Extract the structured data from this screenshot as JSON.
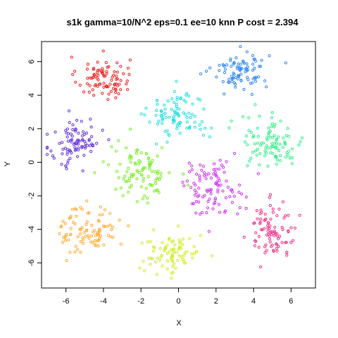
{
  "chart_data": {
    "type": "scatter",
    "title": "s1k gamma=10/N^2 eps=0.1 ee=10 knn P cost = 2.394",
    "xlabel": "X",
    "ylabel": "Y",
    "xlim": [
      -7.3,
      7.3
    ],
    "ylim": [
      -7.5,
      7.2
    ],
    "xticks": [
      -6,
      -4,
      -2,
      0,
      2,
      4,
      6
    ],
    "yticks": [
      -6,
      -4,
      -2,
      0,
      2,
      4,
      6
    ],
    "grid": false,
    "legend": "none",
    "marker": "open-circle",
    "series": [
      {
        "color": "#ee2222",
        "center": [
          -4.0,
          5.0
        ],
        "spread": [
          0.7,
          0.65
        ],
        "count": 90
      },
      {
        "color": "#3388ee",
        "center": [
          3.3,
          5.5
        ],
        "spread": [
          0.75,
          0.55
        ],
        "count": 90
      },
      {
        "color": "#22dddd",
        "center": [
          0.0,
          2.8
        ],
        "spread": [
          0.8,
          0.75
        ],
        "count": 95
      },
      {
        "color": "#6633dd",
        "center": [
          -5.5,
          1.1
        ],
        "spread": [
          0.7,
          0.75
        ],
        "count": 90
      },
      {
        "color": "#33ee88",
        "center": [
          5.0,
          1.2
        ],
        "spread": [
          0.85,
          0.8
        ],
        "count": 95
      },
      {
        "color": "#77ee22",
        "center": [
          -2.0,
          -0.6
        ],
        "spread": [
          0.85,
          0.85
        ],
        "count": 100
      },
      {
        "color": "#cc33ee",
        "center": [
          1.8,
          -1.5
        ],
        "spread": [
          0.85,
          0.8
        ],
        "count": 100
      },
      {
        "color": "#ffaa33",
        "center": [
          -4.8,
          -4.0
        ],
        "spread": [
          0.75,
          0.75
        ],
        "count": 95
      },
      {
        "color": "#ee3388",
        "center": [
          5.0,
          -4.0
        ],
        "spread": [
          0.65,
          0.8
        ],
        "count": 90
      },
      {
        "color": "#ccee22",
        "center": [
          -0.3,
          -5.5
        ],
        "spread": [
          0.8,
          0.6
        ],
        "count": 85
      }
    ]
  }
}
